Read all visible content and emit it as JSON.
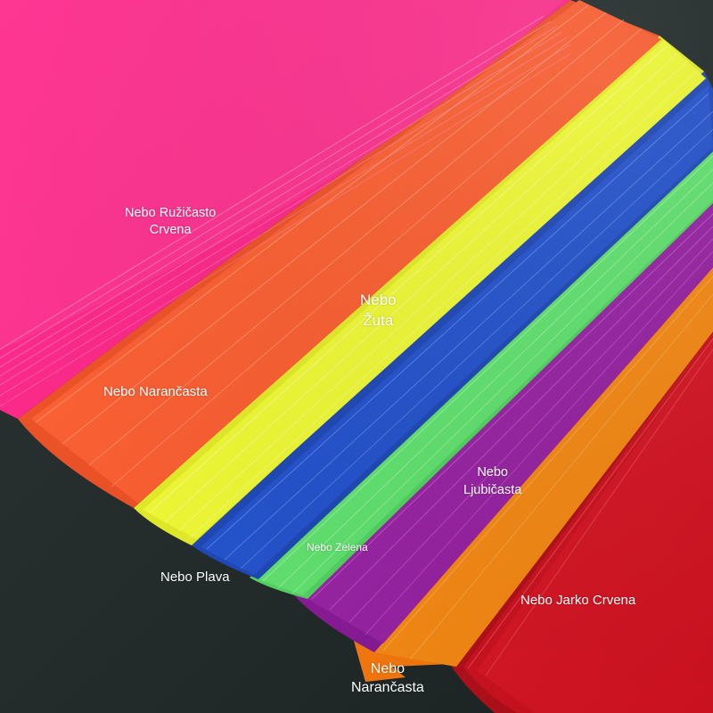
{
  "colors": {
    "background": "#1c2424",
    "pink": "#ff1f86",
    "orange": "#ff5a2a",
    "yellow": "#f4ff2e",
    "blue": "#1d4fd0",
    "green": "#5fe86e",
    "purple": "#9a1ea6",
    "orange_light": "#ff8c10",
    "red": "#d40f1e"
  },
  "labels": {
    "pink": [
      "Nebo Ružičasto",
      "Crvena"
    ],
    "orange": [
      "Nebo Narančasta"
    ],
    "yellow": [
      "Nebo",
      "Žuta"
    ],
    "purple": [
      "Nebo",
      "Ljubičasta"
    ],
    "green": [
      "Nebo Zelena"
    ],
    "blue": [
      "Nebo Plava"
    ],
    "red": [
      "Nebo Jarko Crvena"
    ],
    "orange_light": [
      "Nebo",
      "Narančasta"
    ]
  }
}
